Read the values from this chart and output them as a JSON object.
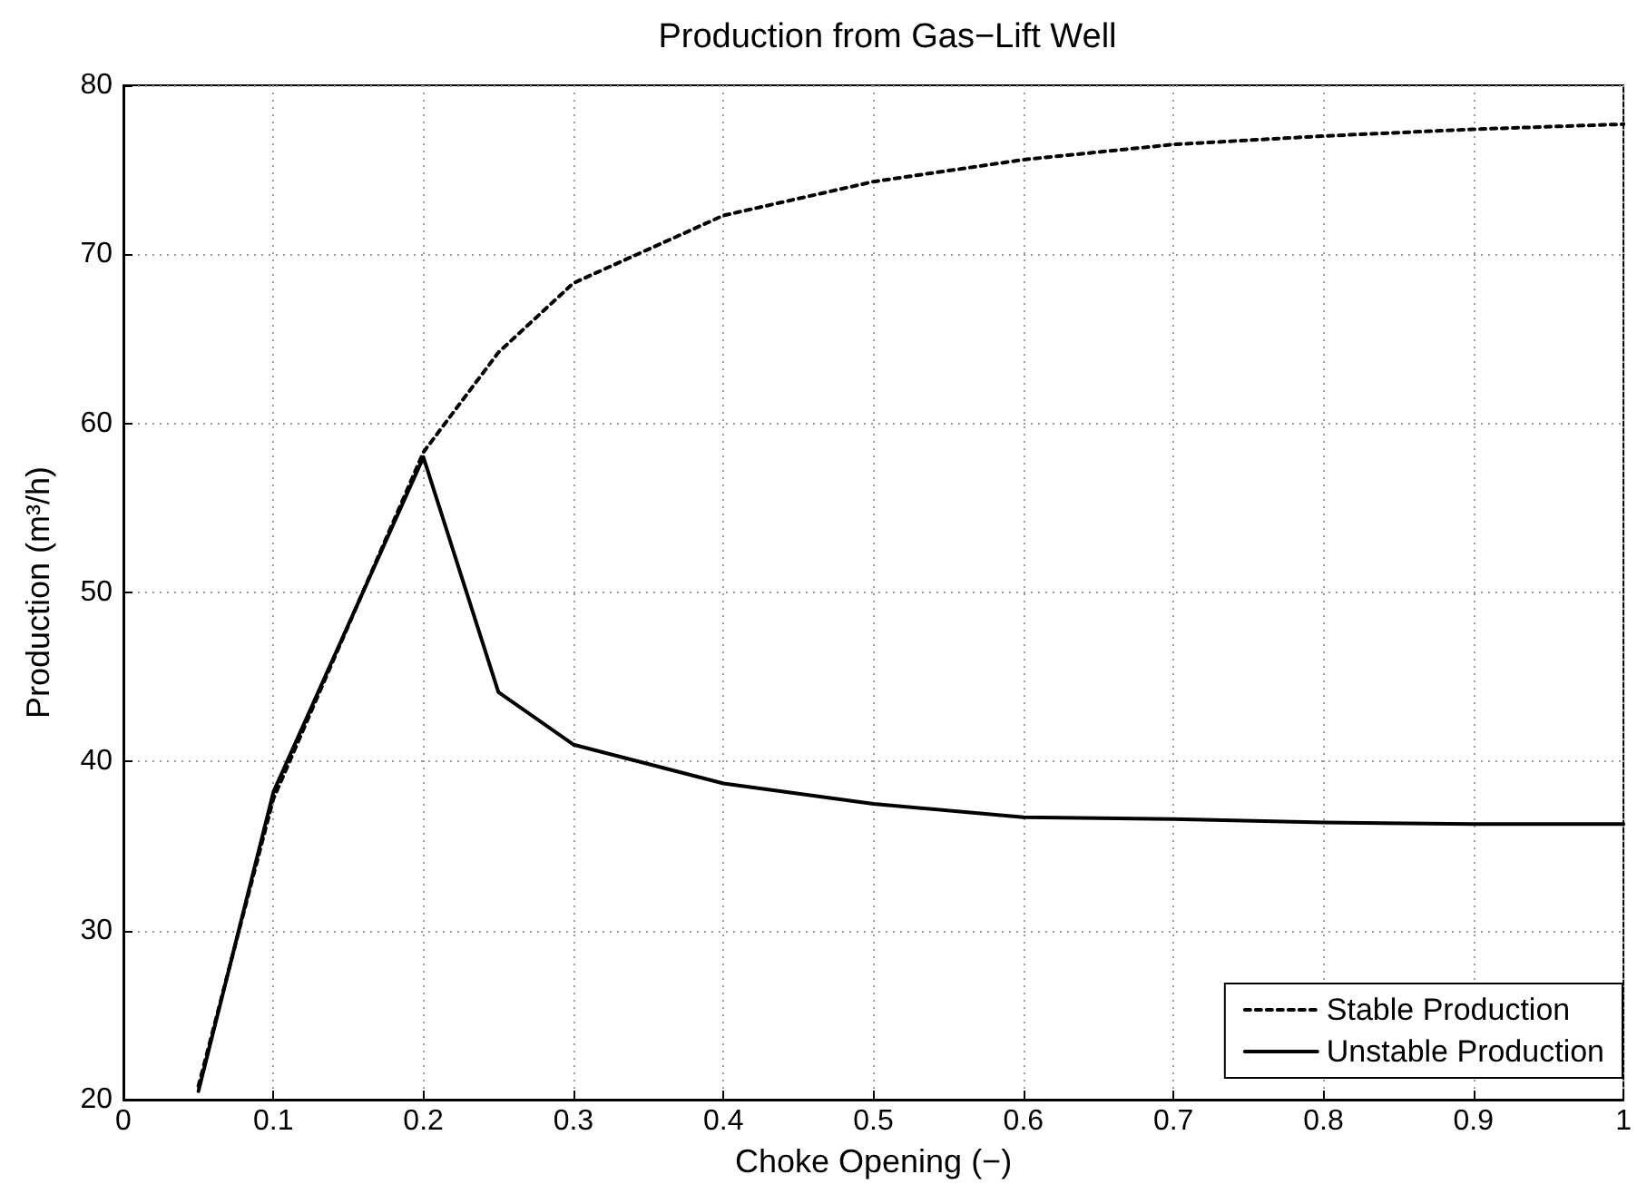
{
  "chart_data": {
    "type": "line",
    "title": "Production from Gas−Lift Well",
    "xlabel": "Choke Opening (−)",
    "ylabel": "Production (m³/h)",
    "x": [
      0.05,
      0.1,
      0.2,
      0.25,
      0.3,
      0.4,
      0.5,
      0.6,
      0.7,
      0.8,
      0.9,
      1.0
    ],
    "series": [
      {
        "name": "Stable Production",
        "color": "#000000",
        "line_style": "dotted",
        "values": [
          20.8,
          37.8,
          58.3,
          64.2,
          68.3,
          72.3,
          74.3,
          75.6,
          76.5,
          77.0,
          77.4,
          77.7
        ]
      },
      {
        "name": "Unstable Production",
        "color": "#000000",
        "line_style": "solid",
        "values": [
          20.5,
          38.2,
          58.0,
          44.1,
          41.0,
          38.7,
          37.5,
          36.7,
          36.6,
          36.4,
          36.3,
          36.3
        ]
      }
    ],
    "xlim": [
      0,
      1
    ],
    "xticks": [
      0,
      0.1,
      0.2,
      0.3,
      0.4,
      0.5,
      0.6,
      0.7,
      0.8,
      0.9,
      1
    ],
    "ylim": [
      20,
      80
    ],
    "yticks": [
      20,
      30,
      40,
      50,
      60,
      70,
      80
    ],
    "grid": true,
    "legend": "bottom right",
    "marker": "none"
  }
}
